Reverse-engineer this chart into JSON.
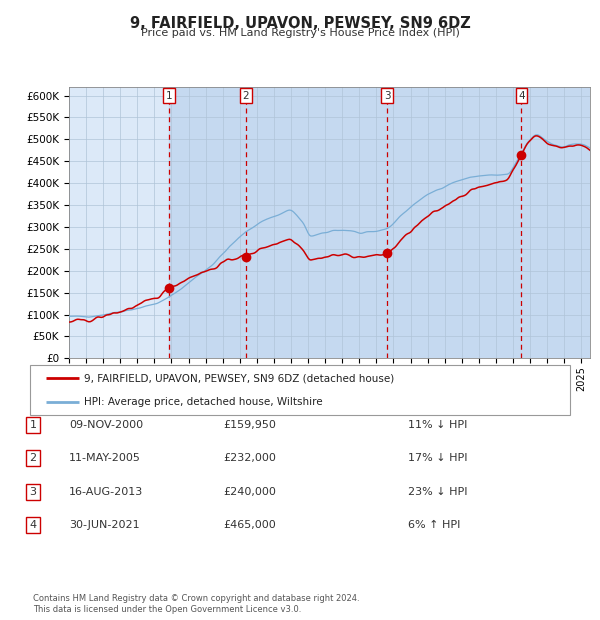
{
  "title": "9, FAIRFIELD, UPAVON, PEWSEY, SN9 6DZ",
  "subtitle": "Price paid vs. HM Land Registry's House Price Index (HPI)",
  "ytick_labels": [
    "£0",
    "£50K",
    "£100K",
    "£150K",
    "£200K",
    "£250K",
    "£300K",
    "£350K",
    "£400K",
    "£450K",
    "£500K",
    "£550K",
    "£600K"
  ],
  "yticks": [
    0,
    50000,
    100000,
    150000,
    200000,
    250000,
    300000,
    350000,
    400000,
    450000,
    500000,
    550000,
    600000
  ],
  "plot_bg_color": "#dce9f8",
  "legend_line1": "9, FAIRFIELD, UPAVON, PEWSEY, SN9 6DZ (detached house)",
  "legend_line2": "HPI: Average price, detached house, Wiltshire",
  "line1_color": "#cc0000",
  "line2_color": "#7aaed6",
  "sale_prices": [
    159950,
    232000,
    240000,
    465000
  ],
  "sale_labels": [
    "1",
    "2",
    "3",
    "4"
  ],
  "sale_table": [
    [
      "1",
      "09-NOV-2000",
      "£159,950",
      "11% ↓ HPI"
    ],
    [
      "2",
      "11-MAY-2005",
      "£232,000",
      "17% ↓ HPI"
    ],
    [
      "3",
      "16-AUG-2013",
      "£240,000",
      "23% ↓ HPI"
    ],
    [
      "4",
      "30-JUN-2021",
      "£465,000",
      "6% ↑ HPI"
    ]
  ],
  "footer": "Contains HM Land Registry data © Crown copyright and database right 2024.\nThis data is licensed under the Open Government Licence v3.0."
}
